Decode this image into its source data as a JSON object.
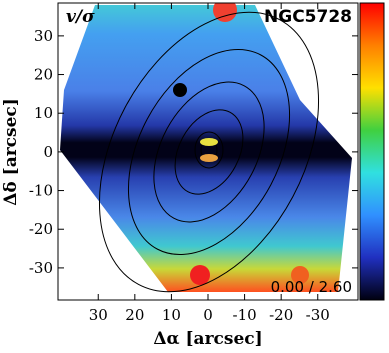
{
  "chart_data": {
    "type": "map",
    "title": "NGC5728",
    "quantity": "v/σ",
    "range_label": "0.00 / 2.60",
    "xlabel": "Δα [arcsec]",
    "ylabel": "Δδ [arcsec]",
    "xlim": [
      41,
      -41
    ],
    "xticks": [
      30,
      20,
      10,
      0,
      -10,
      -20,
      -30
    ],
    "ylim": [
      -38.3,
      38.5
    ],
    "yticks": [
      30,
      20,
      10,
      0,
      -10,
      -20,
      -30
    ],
    "colormap": [
      "#ff0000",
      "#ff8000",
      "#ffe000",
      "#40d040",
      "#30e0e0",
      "#3090ff",
      "#2030c0",
      "#000010"
    ]
  }
}
